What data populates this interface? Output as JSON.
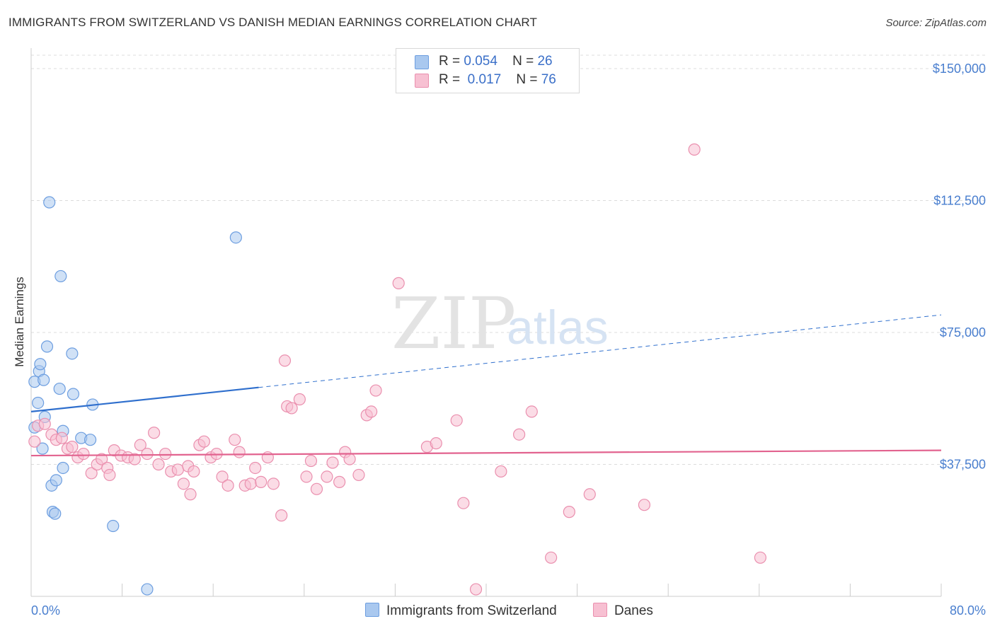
{
  "header": {
    "title": "IMMIGRANTS FROM SWITZERLAND VS DANISH MEDIAN EARNINGS CORRELATION CHART",
    "source": "Source: ZipAtlas.com"
  },
  "watermark": {
    "zip": "ZIP",
    "atlas": "atlas"
  },
  "legend": {
    "series1": {
      "r_label": "R =",
      "r_value": "0.054",
      "n_label": "N =",
      "n_value": "26"
    },
    "series2": {
      "r_label": "R =",
      "r_value": "0.017",
      "n_label": "N =",
      "n_value": "76"
    }
  },
  "bottom_legend": {
    "series1": "Immigrants from Switzerland",
    "series2": "Danes"
  },
  "colors": {
    "blue_fill": "#a9c8ef",
    "blue_stroke": "#6d9ee0",
    "blue_line": "#2f6fcd",
    "pink_fill": "#f7c0d2",
    "pink_stroke": "#ea8fae",
    "pink_line": "#e2638f",
    "tick_text": "#4a7fcf",
    "grid": "#dcdcdc"
  },
  "chart_data": {
    "type": "scatter",
    "title": "IMMIGRANTS FROM SWITZERLAND VS DANISH MEDIAN EARNINGS CORRELATION CHART",
    "xlabel": "",
    "ylabel": "Median Earnings",
    "xlim": [
      0,
      80
    ],
    "ylim": [
      0,
      150000
    ],
    "x_tick_labels": [
      "0.0%",
      "80.0%"
    ],
    "y_ticks": [
      {
        "value": 37500,
        "label": "$37,500"
      },
      {
        "value": 75000,
        "label": "$75,000"
      },
      {
        "value": 112500,
        "label": "$112,500"
      },
      {
        "value": 150000,
        "label": "$150,000"
      }
    ],
    "series": [
      {
        "name": "Immigrants from Switzerland",
        "color": "blue",
        "points": [
          [
            0.3,
            48000
          ],
          [
            0.3,
            61000
          ],
          [
            0.6,
            55000
          ],
          [
            0.7,
            64000
          ],
          [
            0.8,
            66000
          ],
          [
            1.0,
            42000
          ],
          [
            1.1,
            61500
          ],
          [
            1.2,
            51000
          ],
          [
            1.4,
            71000
          ],
          [
            1.6,
            112000
          ],
          [
            1.8,
            31500
          ],
          [
            1.9,
            24000
          ],
          [
            2.1,
            23500
          ],
          [
            2.2,
            33000
          ],
          [
            2.5,
            59000
          ],
          [
            2.6,
            91000
          ],
          [
            2.8,
            47000
          ],
          [
            2.8,
            36500
          ],
          [
            3.6,
            69000
          ],
          [
            3.7,
            57500
          ],
          [
            4.4,
            45000
          ],
          [
            5.2,
            44500
          ],
          [
            5.4,
            54500
          ],
          [
            7.2,
            20000
          ],
          [
            10.2,
            2000
          ],
          [
            18.0,
            102000
          ]
        ],
        "trend": {
          "x": [
            0,
            80
          ],
          "y": [
            52500,
            80000
          ],
          "solid_until_x": 20
        }
      },
      {
        "name": "Danes",
        "color": "pink",
        "points": [
          [
            0.3,
            44000
          ],
          [
            0.6,
            48500
          ],
          [
            1.2,
            49000
          ],
          [
            1.8,
            46000
          ],
          [
            2.2,
            44500
          ],
          [
            2.7,
            45000
          ],
          [
            3.2,
            42000
          ],
          [
            3.6,
            42500
          ],
          [
            4.1,
            39500
          ],
          [
            4.6,
            40500
          ],
          [
            5.3,
            35000
          ],
          [
            5.8,
            37500
          ],
          [
            6.2,
            39000
          ],
          [
            6.7,
            36500
          ],
          [
            7.3,
            41500
          ],
          [
            7.9,
            40000
          ],
          [
            8.5,
            39500
          ],
          [
            9.1,
            39000
          ],
          [
            9.6,
            43000
          ],
          [
            10.2,
            40500
          ],
          [
            10.8,
            46500
          ],
          [
            11.2,
            37500
          ],
          [
            11.8,
            40500
          ],
          [
            12.3,
            35500
          ],
          [
            12.9,
            36000
          ],
          [
            13.4,
            32000
          ],
          [
            13.8,
            37000
          ],
          [
            14.3,
            35500
          ],
          [
            14.8,
            43000
          ],
          [
            15.2,
            44000
          ],
          [
            15.8,
            39500
          ],
          [
            16.3,
            40500
          ],
          [
            16.8,
            34000
          ],
          [
            17.3,
            31500
          ],
          [
            17.9,
            44500
          ],
          [
            18.3,
            41000
          ],
          [
            18.8,
            31500
          ],
          [
            19.3,
            32000
          ],
          [
            19.7,
            36500
          ],
          [
            20.2,
            32500
          ],
          [
            20.8,
            39500
          ],
          [
            21.3,
            32000
          ],
          [
            22.0,
            23000
          ],
          [
            22.5,
            54000
          ],
          [
            22.9,
            53500
          ],
          [
            23.6,
            56000
          ],
          [
            24.2,
            34000
          ],
          [
            24.6,
            38500
          ],
          [
            25.1,
            30500
          ],
          [
            26.0,
            34000
          ],
          [
            26.5,
            38000
          ],
          [
            27.1,
            32500
          ],
          [
            27.6,
            41000
          ],
          [
            28.0,
            39000
          ],
          [
            28.8,
            34500
          ],
          [
            29.5,
            51500
          ],
          [
            29.9,
            52500
          ],
          [
            30.3,
            58500
          ],
          [
            32.3,
            89000
          ],
          [
            34.8,
            42500
          ],
          [
            35.6,
            43500
          ],
          [
            37.4,
            50000
          ],
          [
            38.0,
            26500
          ],
          [
            39.1,
            2000
          ],
          [
            41.3,
            35500
          ],
          [
            42.9,
            46000
          ],
          [
            44.0,
            52500
          ],
          [
            45.7,
            11000
          ],
          [
            47.3,
            24000
          ],
          [
            49.1,
            29000
          ],
          [
            53.9,
            26000
          ],
          [
            58.3,
            127000
          ],
          [
            64.1,
            11000
          ],
          [
            22.3,
            67000
          ],
          [
            14.0,
            29000
          ],
          [
            6.9,
            34500
          ]
        ],
        "trend": {
          "x": [
            0,
            80
          ],
          "y": [
            40000,
            41500
          ],
          "solid_until_x": 80
        }
      }
    ]
  }
}
